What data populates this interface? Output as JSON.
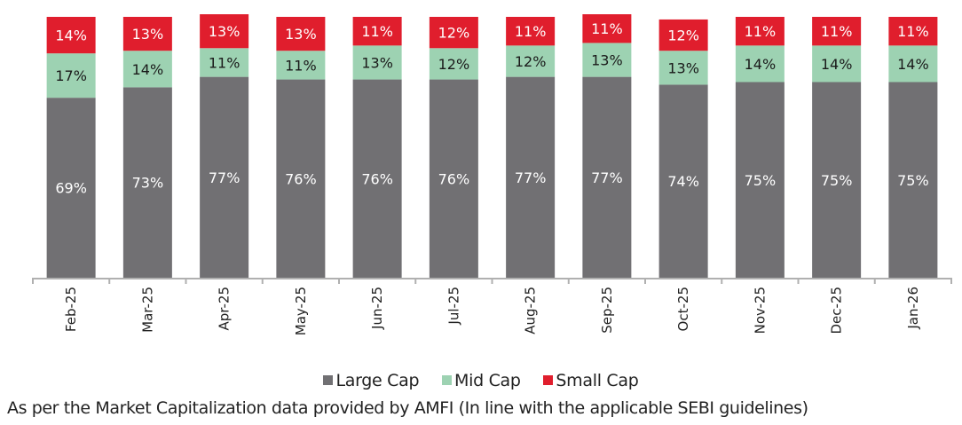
{
  "chart_data": {
    "type": "bar",
    "stacked": true,
    "title": "",
    "xlabel": "",
    "ylabel": "",
    "ylim": [
      0,
      100
    ],
    "grid": false,
    "legend_position": "bottom",
    "categories": [
      "Feb-25",
      "Mar-25",
      "Apr-25",
      "May-25",
      "Jun-25",
      "Jul-25",
      "Aug-25",
      "Sep-25",
      "Oct-25",
      "Nov-25",
      "Dec-25",
      "Jan-26"
    ],
    "series": [
      {
        "name": "Large Cap",
        "color": "#717073",
        "label_color": "#ffffff",
        "values": [
          69,
          73,
          77,
          76,
          76,
          76,
          77,
          77,
          74,
          75,
          75,
          75
        ]
      },
      {
        "name": "Mid Cap",
        "color": "#9dd2b2",
        "label_color": "#1a1a1a",
        "values": [
          17,
          14,
          11,
          11,
          13,
          12,
          12,
          13,
          13,
          14,
          14,
          14
        ]
      },
      {
        "name": "Small Cap",
        "color": "#e01e2d",
        "label_color": "#ffffff",
        "values": [
          14,
          13,
          13,
          13,
          11,
          12,
          11,
          11,
          12,
          11,
          11,
          11
        ]
      }
    ],
    "value_suffix": "%"
  },
  "footnote": "As per the Market Capitalization data provided by AMFI (In line with the applicable SEBI guidelines)"
}
